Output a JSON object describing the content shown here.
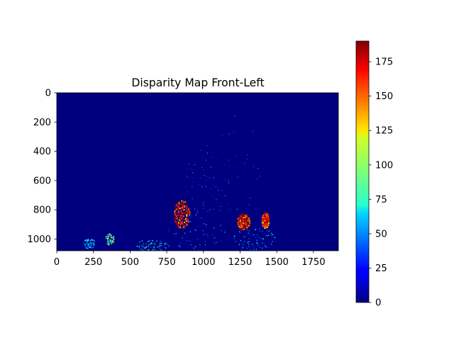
{
  "chart_data": [
    {
      "type": "heatmap",
      "title": "Disparity Map Front-Left",
      "xlabel": "",
      "ylabel": "",
      "xlim": [
        0,
        1920
      ],
      "ylim": [
        1080,
        0
      ],
      "x_ticks": [
        0,
        250,
        500,
        750,
        1000,
        1250,
        1500,
        1750
      ],
      "x_tick_labels": [
        "0",
        "250",
        "500",
        "750",
        "1000",
        "1250",
        "1500",
        "1750"
      ],
      "y_ticks": [
        0,
        200,
        400,
        600,
        800,
        1000
      ],
      "y_tick_labels": [
        "0",
        "200",
        "400",
        "600",
        "800",
        "1000"
      ],
      "colormap": "jet",
      "background_value": 0,
      "grid": false,
      "regions": [
        {
          "cx": 850,
          "cy": 830,
          "rx": 55,
          "ry": 100,
          "level": 175
        },
        {
          "cx": 1270,
          "cy": 880,
          "rx": 45,
          "ry": 55,
          "level": 180
        },
        {
          "cx": 1420,
          "cy": 870,
          "rx": 25,
          "ry": 55,
          "level": 170
        },
        {
          "cx": 360,
          "cy": 1000,
          "rx": 30,
          "ry": 40,
          "level": 90
        },
        {
          "cx": 220,
          "cy": 1030,
          "rx": 40,
          "ry": 35,
          "level": 60
        },
        {
          "cx": 1200,
          "cy": 500,
          "rx": 200,
          "ry": 350,
          "level": 30
        },
        {
          "cx": 1000,
          "cy": 600,
          "rx": 120,
          "ry": 250,
          "level": 30
        },
        {
          "cx": 950,
          "cy": 950,
          "rx": 200,
          "ry": 120,
          "level": 45
        },
        {
          "cx": 1350,
          "cy": 1000,
          "rx": 150,
          "ry": 80,
          "level": 55
        },
        {
          "cx": 650,
          "cy": 1040,
          "rx": 120,
          "ry": 40,
          "level": 70
        }
      ]
    },
    {
      "type": "colorbar",
      "colormap": "jet",
      "range": [
        0,
        190
      ],
      "ticks": [
        0,
        25,
        50,
        75,
        100,
        125,
        150,
        175
      ],
      "tick_labels": [
        "0",
        "25",
        "50",
        "75",
        "100",
        "125",
        "150",
        "175"
      ]
    }
  ]
}
